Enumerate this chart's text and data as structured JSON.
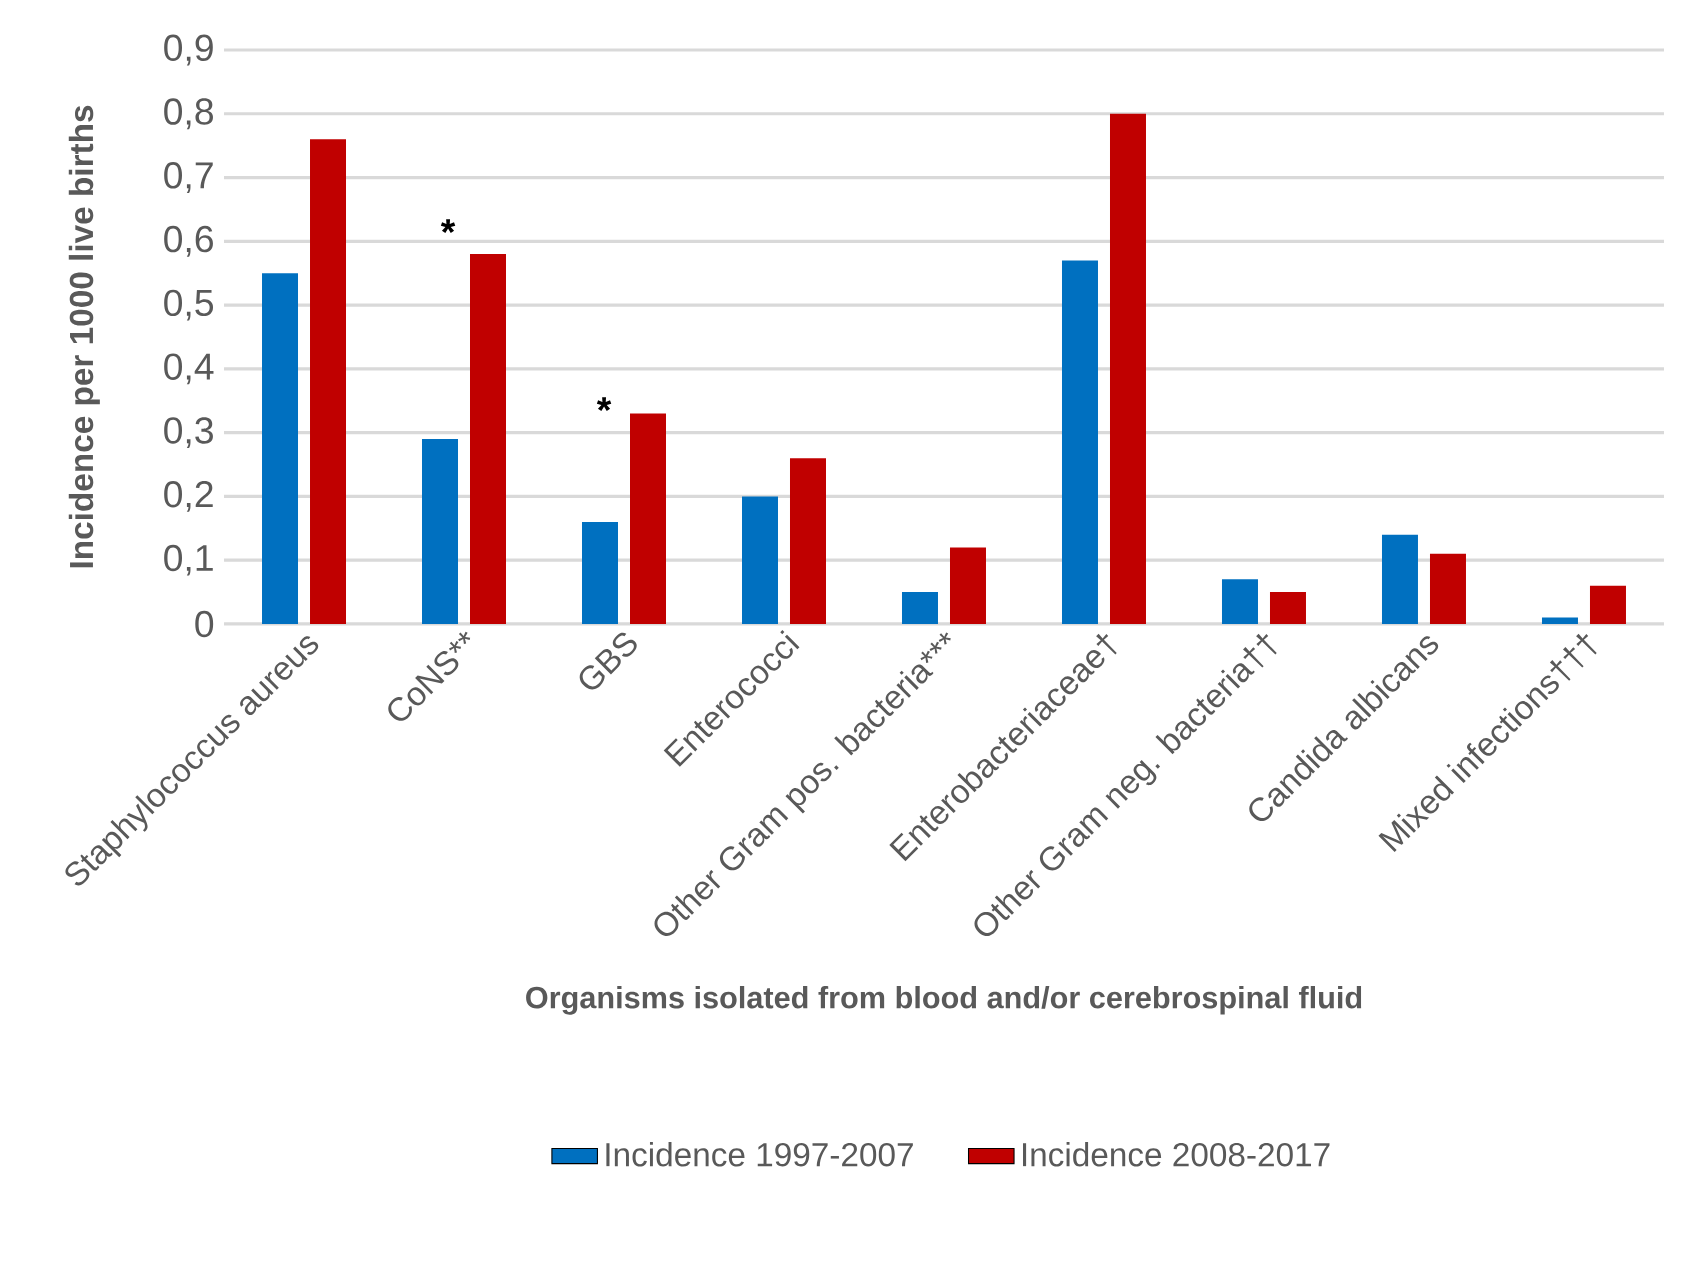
{
  "chart_data": {
    "type": "bar",
    "xlabel": "Organisms isolated from blood and/or cerebrospinal fluid",
    "ylabel": "Incidence per 1000 live births",
    "categories": [
      "Staphylococcus aureus",
      "CoNS**",
      "GBS",
      "Enterococci",
      "Other Gram pos. bacteria***",
      "Enterobacteriaceae†",
      "Other Gram neg. bacteria††",
      "Candida albicans",
      "Mixed infections†††"
    ],
    "series": [
      {
        "name": "Incidence 1997-2007",
        "color": "#0070c0",
        "values": [
          0.55,
          0.29,
          0.16,
          0.2,
          0.05,
          0.57,
          0.07,
          0.14,
          0.01
        ]
      },
      {
        "name": "Incidence 2008-2017",
        "color": "#c00000",
        "values": [
          0.76,
          0.58,
          0.33,
          0.26,
          0.12,
          0.8,
          0.05,
          0.11,
          0.06
        ]
      }
    ],
    "ylim": [
      0,
      0.9
    ],
    "yticks": [
      0,
      {
        "value": 0.1,
        "label": "0,1"
      },
      {
        "value": 0.2,
        "label": "0,2"
      },
      {
        "value": 0.3,
        "label": "0,3"
      },
      {
        "value": 0.4,
        "label": "0,4"
      },
      {
        "value": 0.5,
        "label": "0,5"
      },
      {
        "value": 0.6,
        "label": "0,6"
      },
      {
        "value": 0.7,
        "label": "0,7"
      },
      {
        "value": 0.8,
        "label": "0,8"
      },
      {
        "value": 0.9,
        "label": "0,9"
      }
    ],
    "annotations": [
      "*",
      "*"
    ],
    "grid": "y",
    "legend": "bottom"
  }
}
